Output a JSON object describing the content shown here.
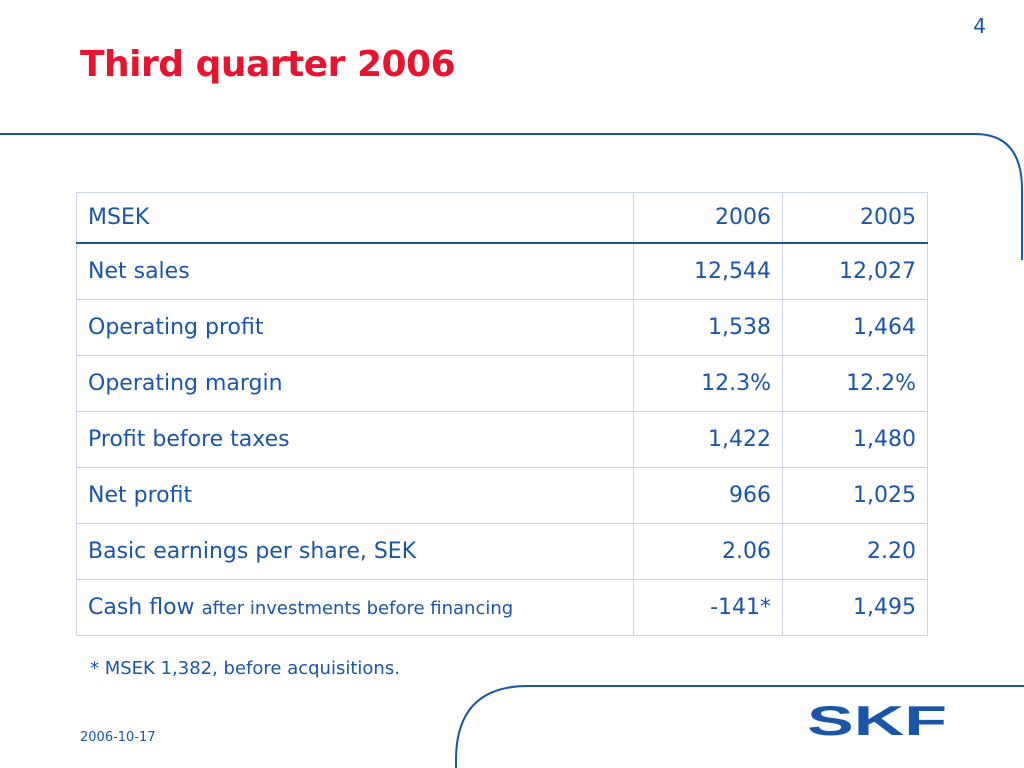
{
  "slide": {
    "page_number": "4",
    "title": "Third quarter 2006",
    "date": "2006-10-17",
    "footnote": "* MSEK 1,382, before acquisitions.",
    "logo_text": "SKF"
  },
  "table": {
    "header": {
      "label": "MSEK",
      "col_2006": "2006",
      "col_2005": "2005"
    },
    "rows": [
      {
        "label": "Net sales",
        "v2006": "12,544",
        "v2005": "12,027"
      },
      {
        "label": "Operating profit",
        "v2006": "1,538",
        "v2005": "1,464"
      },
      {
        "label": "Operating margin",
        "v2006": "12.3%",
        "v2005": "12.2%"
      },
      {
        "label": "Profit before taxes",
        "v2006": "1,422",
        "v2005": "1,480"
      },
      {
        "label": "Net profit",
        "v2006": "966",
        "v2005": "1,025"
      },
      {
        "label": "Basic earnings per share, SEK",
        "v2006": "2.06",
        "v2005": "2.20"
      },
      {
        "label": "Cash flow",
        "label_suffix": "after investments before financing",
        "v2006": "-141*",
        "v2005": "1,495"
      }
    ]
  },
  "colors": {
    "title_red": "#e8132e",
    "brand_blue": "#1a55a8",
    "grid": "#c8d4ea"
  }
}
